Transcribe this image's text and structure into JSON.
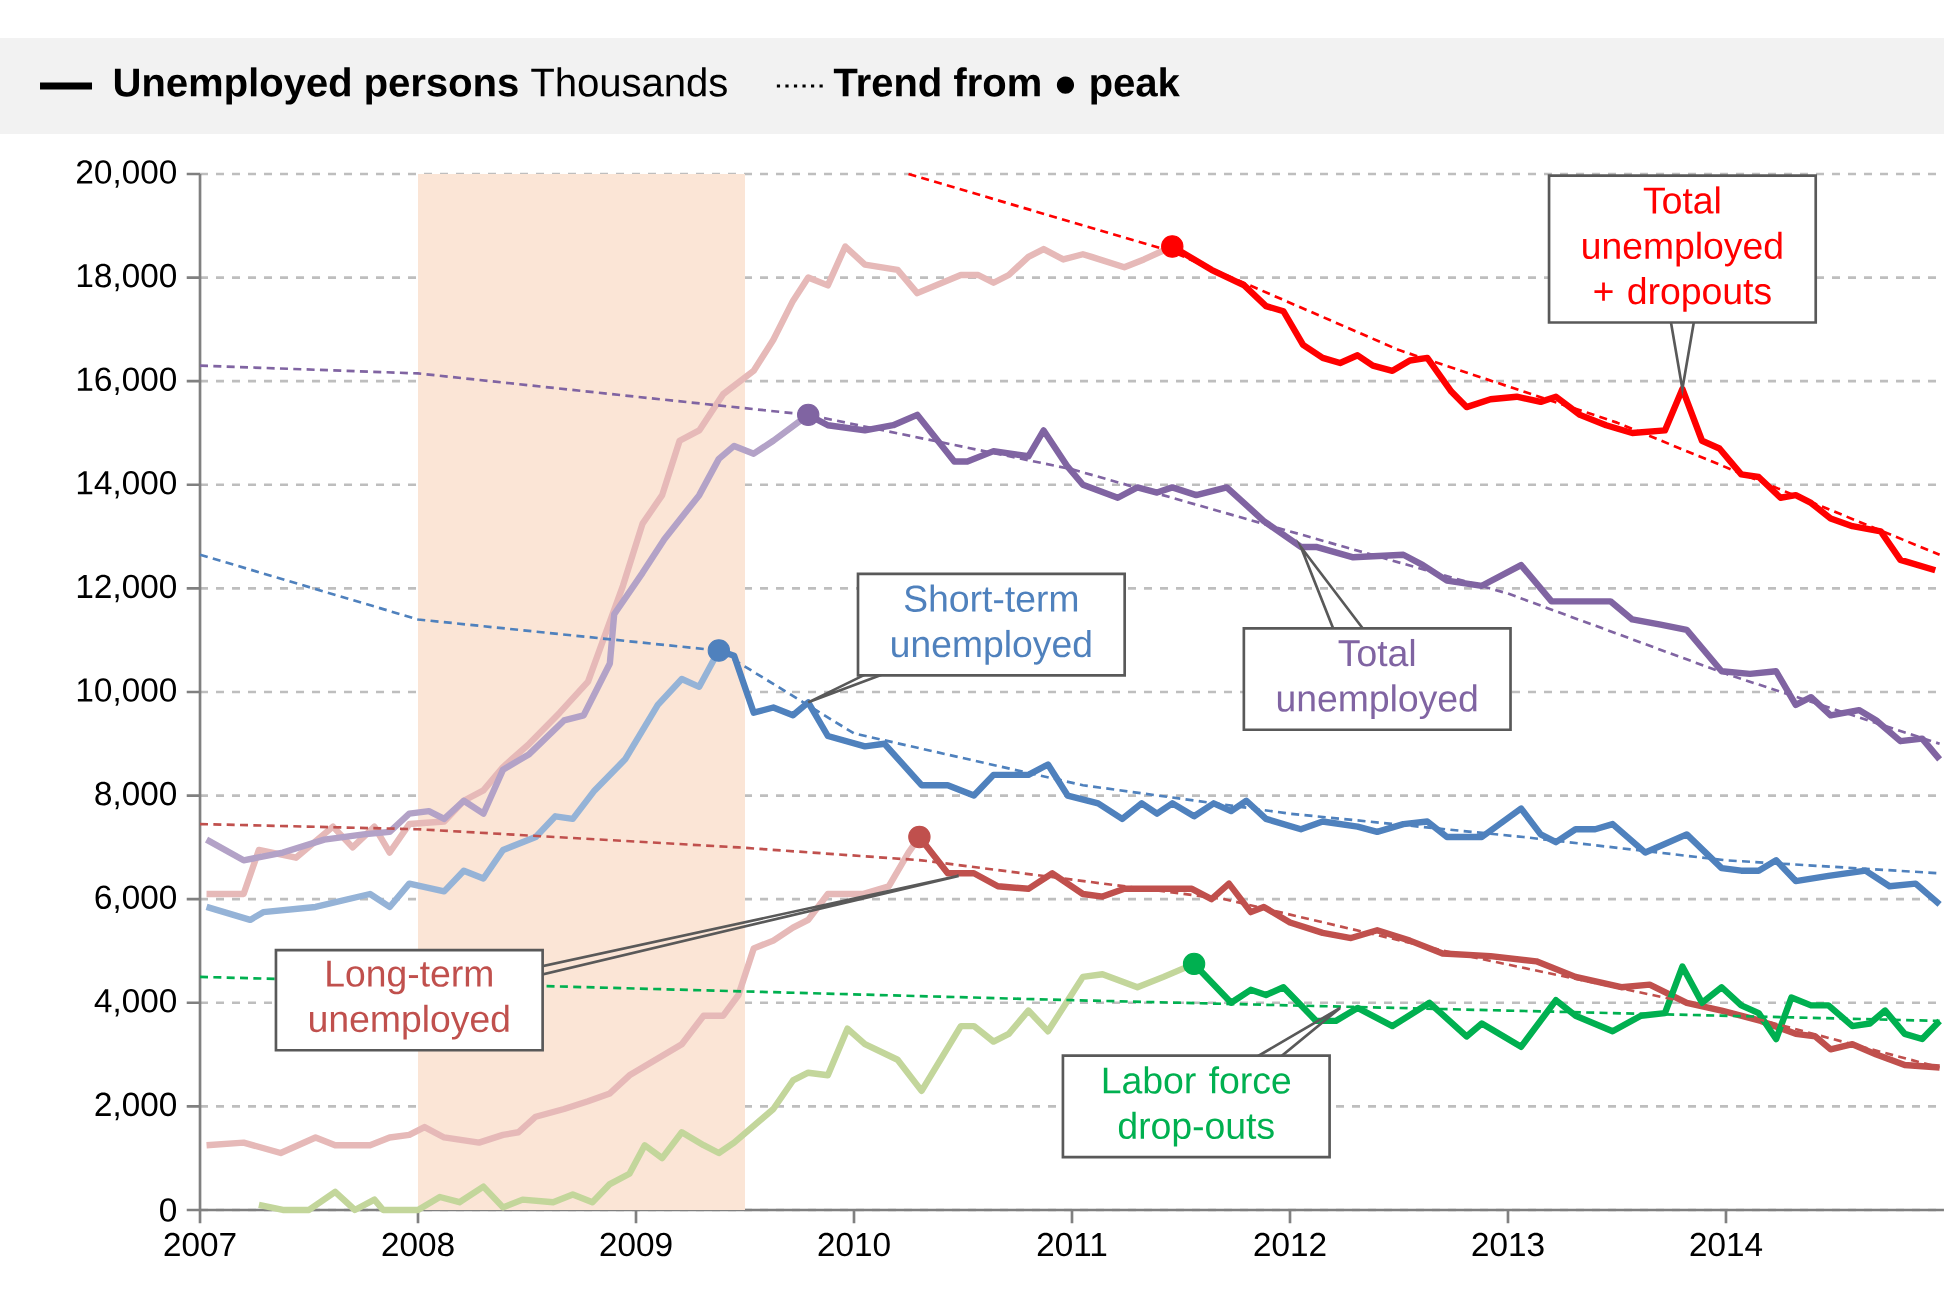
{
  "chart_data": {
    "type": "line",
    "title": "**Unemployed persons** Thousands",
    "annotations": [
      "**Trend from ● peak**"
    ],
    "xlim": [
      2007,
      2015
    ],
    "xticks": [
      2007,
      2008,
      2009,
      2010,
      2011,
      2012,
      2013,
      2014
    ],
    "ylim": [
      0,
      20000
    ],
    "yticks": [
      {
        "value": 0,
        "label": "0"
      },
      {
        "value": 2000,
        "label": "2,000"
      },
      {
        "value": 4000,
        "label": "4,000"
      },
      {
        "value": 6000,
        "label": "6,000"
      },
      {
        "value": 8000,
        "label": "8,000"
      },
      {
        "value": 10000,
        "label": "10,000"
      },
      {
        "value": 12000,
        "label": "12,000"
      },
      {
        "value": 14000,
        "label": "14,000"
      },
      {
        "value": 16000,
        "label": "16,000"
      },
      {
        "value": 18000,
        "label": "18,000"
      },
      {
        "value": 20000,
        "label": "20,000"
      }
    ],
    "grid": "y",
    "bands": [
      {
        "axis": "x",
        "from": 2008,
        "to": 2009.5,
        "color": "#fbe5d6"
      }
    ],
    "series": [
      {
        "color": "#e6b9b8",
        "x": [
          2007.03,
          2007.2,
          2007.27,
          2007.44,
          2007.61,
          2007.7,
          2007.8,
          2007.87,
          2007.96,
          2008.12,
          2008.21,
          2008.3,
          2008.39,
          2008.51,
          2008.65,
          2008.78,
          2008.94,
          2009.03,
          2009.12,
          2009.2,
          2009.29,
          2009.4,
          2009.54,
          2009.63,
          2009.72,
          2009.79,
          2009.88,
          2009.96,
          2010.05,
          2010.2,
          2010.29,
          2010.49,
          2010.57,
          2010.64,
          2010.71,
          2010.8,
          2010.87,
          2010.96,
          2011.05,
          2011.09,
          2011.24,
          2011.33,
          2011.46
        ],
        "values": [
          6100,
          6100,
          6950,
          6800,
          7400,
          7000,
          7400,
          6900,
          7450,
          7500,
          7900,
          8100,
          8550,
          9000,
          9600,
          10200,
          12050,
          13250,
          13800,
          14850,
          15050,
          15750,
          16200,
          16800,
          17550,
          18000,
          17850,
          18600,
          18250,
          18150,
          17700,
          18050,
          18050,
          17900,
          18050,
          18400,
          18550,
          18350,
          18450,
          18400,
          18200,
          18350,
          18600
        ]
      },
      {
        "name": "Total unemployed + dropouts",
        "color": "#ff0000",
        "x": [
          2011.46,
          2011.64,
          2011.79,
          2011.89,
          2011.97,
          2012.06,
          2012.15,
          2012.23,
          2012.31,
          2012.38,
          2012.47,
          2012.55,
          2012.63,
          2012.74,
          2012.81,
          2012.92,
          2013.04,
          2013.15,
          2013.22,
          2013.33,
          2013.45,
          2013.57,
          2013.72,
          2013.8,
          2013.89,
          2013.97,
          2014.07,
          2014.15,
          2014.25,
          2014.32,
          2014.39,
          2014.48,
          2014.58,
          2014.71,
          2014.8,
          2014.96
        ],
        "values": [
          18600,
          18150,
          17850,
          17450,
          17350,
          16700,
          16450,
          16350,
          16500,
          16300,
          16200,
          16400,
          16450,
          15800,
          15500,
          15650,
          15700,
          15600,
          15700,
          15350,
          15150,
          15000,
          15050,
          15850,
          14850,
          14700,
          14200,
          14150,
          13750,
          13800,
          13650,
          13350,
          13200,
          13100,
          12550,
          12350
        ]
      },
      {
        "color": "#b3a2c7",
        "x": [
          2007.03,
          2007.2,
          2007.38,
          2007.57,
          2007.75,
          2007.87,
          2007.96,
          2008.05,
          2008.12,
          2008.21,
          2008.3,
          2008.39,
          2008.51,
          2008.67,
          2008.76,
          2008.88,
          2008.9,
          2009.03,
          2009.13,
          2009.29,
          2009.38,
          2009.45,
          2009.54,
          2009.63,
          2009.79
        ],
        "values": [
          7150,
          6750,
          6900,
          7150,
          7250,
          7300,
          7650,
          7700,
          7550,
          7900,
          7650,
          8500,
          8800,
          9450,
          9550,
          10550,
          11500,
          12300,
          12950,
          13800,
          14500,
          14750,
          14600,
          14850,
          15350
        ]
      },
      {
        "name": "Total unemployed",
        "color": "#8064a2",
        "x": [
          2009.79,
          2009.88,
          2010.05,
          2010.18,
          2010.29,
          2010.46,
          2010.52,
          2010.64,
          2010.8,
          2010.87,
          2010.98,
          2011.05,
          2011.21,
          2011.3,
          2011.39,
          2011.46,
          2011.57,
          2011.71,
          2011.88,
          2012.05,
          2012.12,
          2012.29,
          2012.52,
          2012.61,
          2012.72,
          2012.88,
          2013.06,
          2013.2,
          2013.33,
          2013.47,
          2013.57,
          2013.7,
          2013.82,
          2013.98,
          2014.11,
          2014.23,
          2014.32,
          2014.39,
          2014.48,
          2014.61,
          2014.69,
          2014.8,
          2014.9,
          2014.98
        ],
        "values": [
          15350,
          15150,
          15050,
          15150,
          15350,
          14450,
          14450,
          14650,
          14550,
          15050,
          14350,
          14000,
          13750,
          13950,
          13850,
          13950,
          13800,
          13950,
          13300,
          12800,
          12800,
          12600,
          12650,
          12450,
          12150,
          12050,
          12450,
          11750,
          11750,
          11750,
          11400,
          11300,
          11200,
          10400,
          10350,
          10400,
          9750,
          9900,
          9550,
          9650,
          9450,
          9050,
          9100,
          8700
        ]
      },
      {
        "color": "#95b3d7",
        "x": [
          2007.03,
          2007.23,
          2007.29,
          2007.53,
          2007.78,
          2007.87,
          2007.96,
          2008.12,
          2008.21,
          2008.3,
          2008.39,
          2008.54,
          2008.63,
          2008.71,
          2008.81,
          2008.95,
          2009.1,
          2009.21,
          2009.29,
          2009.38
        ],
        "values": [
          5850,
          5600,
          5750,
          5850,
          6100,
          5850,
          6300,
          6150,
          6550,
          6400,
          6950,
          7200,
          7600,
          7550,
          8100,
          8700,
          9750,
          10250,
          10100,
          10800
        ]
      },
      {
        "name": "Short-term unemployed",
        "color": "#4f81bd",
        "x": [
          2009.38,
          2009.45,
          2009.54,
          2009.63,
          2009.72,
          2009.79,
          2009.88,
          2010.05,
          2010.14,
          2010.31,
          2010.43,
          2010.55,
          2010.64,
          2010.8,
          2010.89,
          2010.98,
          2011.12,
          2011.23,
          2011.32,
          2011.39,
          2011.46,
          2011.56,
          2011.65,
          2011.73,
          2011.8,
          2011.89,
          2012.05,
          2012.15,
          2012.31,
          2012.4,
          2012.52,
          2012.63,
          2012.72,
          2012.88,
          2013.06,
          2013.15,
          2013.22,
          2013.31,
          2013.4,
          2013.48,
          2013.63,
          2013.82,
          2013.98,
          2014.07,
          2014.15,
          2014.23,
          2014.32,
          2014.47,
          2014.64,
          2014.75,
          2014.87,
          2014.98
        ],
        "values": [
          10800,
          10700,
          9600,
          9700,
          9550,
          9800,
          9150,
          8950,
          9000,
          8200,
          8200,
          8000,
          8400,
          8400,
          8600,
          8000,
          7850,
          7550,
          7850,
          7650,
          7850,
          7600,
          7850,
          7700,
          7900,
          7550,
          7350,
          7500,
          7400,
          7300,
          7450,
          7500,
          7200,
          7200,
          7750,
          7250,
          7100,
          7350,
          7350,
          7450,
          6900,
          7250,
          6600,
          6550,
          6550,
          6750,
          6350,
          6450,
          6550,
          6250,
          6300,
          5900
        ]
      },
      {
        "color": "#e6b9b8",
        "x": [
          2007.03,
          2007.2,
          2007.37,
          2007.53,
          2007.62,
          2007.78,
          2007.87,
          2007.96,
          2008.03,
          2008.12,
          2008.28,
          2008.39,
          2008.46,
          2008.54,
          2008.67,
          2008.78,
          2008.88,
          2008.97,
          2009.09,
          2009.21,
          2009.31,
          2009.4,
          2009.47,
          2009.54,
          2009.63,
          2009.72,
          2009.79,
          2009.88,
          2010.04,
          2010.16,
          2010.25,
          2010.3
        ],
        "values": [
          1250,
          1300,
          1100,
          1400,
          1250,
          1250,
          1400,
          1450,
          1600,
          1400,
          1300,
          1450,
          1500,
          1800,
          1950,
          2100,
          2250,
          2600,
          2900,
          3200,
          3750,
          3750,
          4150,
          5050,
          5200,
          5450,
          5600,
          6100,
          6100,
          6250,
          6900,
          7200
        ]
      },
      {
        "name": "Long-term unemployed",
        "color": "#c0504d",
        "x": [
          2010.3,
          2010.43,
          2010.55,
          2010.66,
          2010.8,
          2010.91,
          2011.05,
          2011.14,
          2011.24,
          2011.39,
          2011.55,
          2011.64,
          2011.72,
          2011.82,
          2011.88,
          2012.0,
          2012.15,
          2012.28,
          2012.4,
          2012.55,
          2012.7,
          2012.92,
          2013.13,
          2013.31,
          2013.52,
          2013.65,
          2013.82,
          2013.98,
          2014.16,
          2014.32,
          2014.41,
          2014.48,
          2014.58,
          2014.69,
          2014.82,
          2014.98
        ],
        "values": [
          7200,
          6500,
          6500,
          6250,
          6200,
          6500,
          6100,
          6050,
          6200,
          6200,
          6200,
          6000,
          6300,
          5750,
          5850,
          5550,
          5350,
          5250,
          5400,
          5200,
          4950,
          4900,
          4800,
          4500,
          4300,
          4350,
          4000,
          3850,
          3650,
          3400,
          3350,
          3100,
          3200,
          3000,
          2800,
          2750
        ]
      },
      {
        "color": "#c3d69b",
        "x": [
          2007.27,
          2007.38,
          2007.5,
          2007.62,
          2007.71,
          2007.8,
          2007.84,
          2008.0,
          2008.1,
          2008.19,
          2008.3,
          2008.39,
          2008.48,
          2008.62,
          2008.71,
          2008.8,
          2008.88,
          2008.97,
          2009.04,
          2009.12,
          2009.21,
          2009.31,
          2009.38,
          2009.45,
          2009.63,
          2009.72,
          2009.79,
          2009.88,
          2009.97,
          2010.05,
          2010.2,
          2010.31,
          2010.49,
          2010.55,
          2010.64,
          2010.71,
          2010.8,
          2010.89,
          2011.05,
          2011.14,
          2011.3,
          2011.42,
          2011.56
        ],
        "values": [
          100,
          0,
          0,
          350,
          0,
          200,
          0,
          0,
          250,
          150,
          450,
          50,
          200,
          150,
          300,
          150,
          500,
          700,
          1250,
          1000,
          1500,
          1250,
          1100,
          1300,
          1950,
          2500,
          2650,
          2600,
          3500,
          3200,
          2900,
          2300,
          3550,
          3550,
          3250,
          3400,
          3850,
          3450,
          4500,
          4550,
          4300,
          4500,
          4750
        ]
      },
      {
        "name": "Labor force drop-outs",
        "color": "#00b050",
        "x": [
          2011.56,
          2011.73,
          2011.82,
          2011.89,
          2011.97,
          2012.12,
          2012.21,
          2012.31,
          2012.47,
          2012.64,
          2012.81,
          2012.88,
          2013.06,
          2013.22,
          2013.31,
          2013.48,
          2013.61,
          2013.72,
          2013.8,
          2013.89,
          2013.98,
          2014.07,
          2014.15,
          2014.23,
          2014.3,
          2014.39,
          2014.47,
          2014.58,
          2014.66,
          2014.73,
          2014.82,
          2014.9,
          2014.98
        ],
        "values": [
          4750,
          4000,
          4250,
          4150,
          4300,
          3650,
          3650,
          3900,
          3550,
          4000,
          3350,
          3600,
          3150,
          4050,
          3750,
          3450,
          3750,
          3800,
          4700,
          4000,
          4300,
          3950,
          3800,
          3300,
          4100,
          3950,
          3950,
          3550,
          3600,
          3850,
          3400,
          3300,
          3650
        ]
      },
      {
        "color": "#ff0000",
        "line_style": "dashed",
        "x": [
          2010.25,
          2011.46,
          2012.5,
          2013.5,
          2014.98
        ],
        "values": [
          20000,
          18500,
          16600,
          15200,
          12650
        ]
      },
      {
        "color": "#8064a2",
        "line_style": "dashed",
        "x": [
          2007,
          2008,
          2009,
          2009.79,
          2011,
          2012,
          2013,
          2014,
          2014.98
        ],
        "values": [
          16300,
          16150,
          15700,
          15350,
          14300,
          13100,
          11900,
          10350,
          9000
        ]
      },
      {
        "color": "#4f81bd",
        "line_style": "dashed",
        "x": [
          2007,
          2008,
          2009.38,
          2010,
          2011.05,
          2012,
          2013.07,
          2014,
          2014.98
        ],
        "values": [
          12650,
          11400,
          10800,
          9200,
          8200,
          7650,
          7200,
          6750,
          6500
        ]
      },
      {
        "color": "#c0504d",
        "line_style": "dashed",
        "x": [
          2007,
          2008,
          2009.47,
          2010.31,
          2011.7,
          2012.76,
          2014,
          2014.98
        ],
        "values": [
          7450,
          7350,
          7000,
          6750,
          6000,
          4950,
          3850,
          2750
        ]
      },
      {
        "color": "#00b050",
        "line_style": "dashed",
        "x": [
          2007,
          2011,
          2014.98
        ],
        "values": [
          4500,
          4050,
          3650
        ]
      },
      {
        "type": "scatter",
        "marker": "circle",
        "x": [
          2011.46,
          2009.79,
          2009.38,
          2010.3,
          2011.56
        ],
        "values": [
          18600,
          15350,
          10800,
          7200,
          4750
        ],
        "colors": [
          "#ff0000",
          "#8064a2",
          "#4f81bd",
          "#c0504d",
          "#00b050"
        ]
      }
    ]
  }
}
